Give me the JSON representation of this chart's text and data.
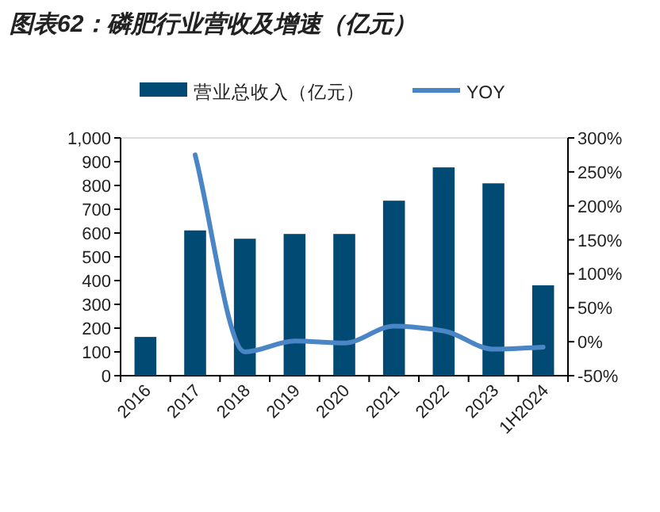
{
  "chart_data": {
    "type": "bar",
    "title": "图表62：磷肥行业营收及增速（亿元）",
    "categories": [
      "2016",
      "2017",
      "2018",
      "2019",
      "2020",
      "2021",
      "2022",
      "2023",
      "1H2024"
    ],
    "series": [
      {
        "name": "营业总收入（亿元）",
        "color": "#004a74",
        "values": [
          163,
          611,
          576,
          596,
          596,
          736,
          876,
          809,
          380
        ]
      },
      {
        "name": "YOY",
        "type": "line",
        "axis": "y2",
        "color": "#4a86c5",
        "values": [
          null,
          275,
          -15,
          1,
          -2,
          23,
          16,
          -11,
          -8
        ]
      }
    ],
    "ylim": [
      0,
      1000
    ],
    "yticks": [
      0,
      100,
      200,
      300,
      400,
      500,
      600,
      700,
      800,
      900,
      {
        "value": 1000,
        "label": "1,000"
      }
    ],
    "y2lim": [
      -50,
      300
    ],
    "y2ticks": [
      {
        "value": -50,
        "label": "-50%"
      },
      {
        "value": 0,
        "label": "0%"
      },
      {
        "value": 50,
        "label": "50%"
      },
      {
        "value": 100,
        "label": "100%"
      },
      {
        "value": 150,
        "label": "150%"
      },
      {
        "value": 200,
        "label": "200%"
      },
      {
        "value": 250,
        "label": "250%"
      },
      {
        "value": 300,
        "label": "300%"
      }
    ],
    "legend": "top"
  }
}
